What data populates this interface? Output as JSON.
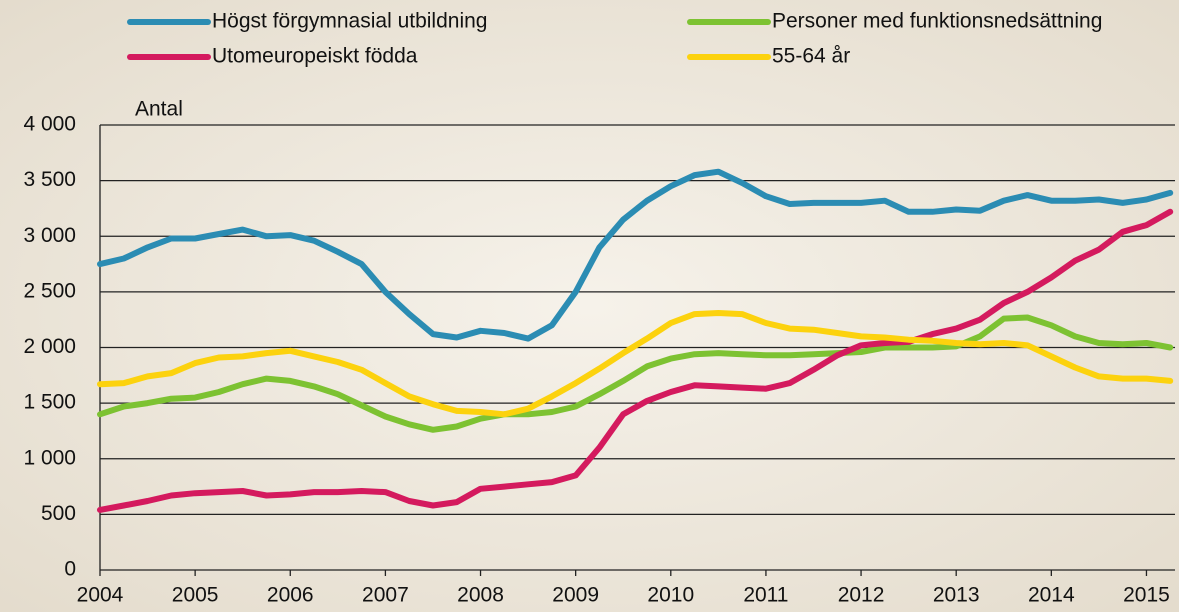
{
  "chart_data": {
    "type": "line",
    "y_label": "Antal",
    "x": [
      2004,
      2004.25,
      2004.5,
      2004.75,
      2005,
      2005.25,
      2005.5,
      2005.75,
      2006,
      2006.25,
      2006.5,
      2006.75,
      2007,
      2007.25,
      2007.5,
      2007.75,
      2008,
      2008.25,
      2008.5,
      2008.75,
      2009,
      2009.25,
      2009.5,
      2009.75,
      2010,
      2010.25,
      2010.5,
      2010.75,
      2011,
      2011.25,
      2011.5,
      2011.75,
      2012,
      2012.25,
      2012.5,
      2012.75,
      2013,
      2013.25,
      2013.5,
      2013.75,
      2014,
      2014.25,
      2014.5,
      2014.75,
      2015,
      2015.25
    ],
    "series": [
      {
        "name": "Högst förgymnasial utbildning",
        "color": "#2b8cb3",
        "values": [
          2750,
          2800,
          2900,
          2980,
          2980,
          3020,
          3060,
          3000,
          3010,
          2960,
          2860,
          2750,
          2500,
          2300,
          2120,
          2090,
          2150,
          2130,
          2080,
          2200,
          2500,
          2900,
          3150,
          3320,
          3450,
          3550,
          3580,
          3480,
          3360,
          3290,
          3300,
          3300,
          3300,
          3320,
          3220,
          3220,
          3240,
          3230,
          3320,
          3370,
          3320,
          3320,
          3330,
          3300,
          3330,
          3390
        ]
      },
      {
        "name": "Personer med funktionsnedsättning",
        "color": "#7dc232",
        "values": [
          1400,
          1470,
          1500,
          1540,
          1550,
          1600,
          1670,
          1720,
          1700,
          1650,
          1580,
          1480,
          1380,
          1310,
          1260,
          1290,
          1360,
          1400,
          1400,
          1420,
          1470,
          1580,
          1700,
          1830,
          1900,
          1940,
          1950,
          1940,
          1930,
          1930,
          1940,
          1950,
          1960,
          2000,
          2000,
          2000,
          2010,
          2100,
          2260,
          2270,
          2200,
          2100,
          2040,
          2030,
          2040,
          2000
        ]
      },
      {
        "name": "Utomeuropeiskt födda",
        "color": "#d41a5e",
        "values": [
          540,
          580,
          620,
          670,
          690,
          700,
          710,
          670,
          680,
          700,
          700,
          710,
          700,
          620,
          580,
          610,
          730,
          750,
          770,
          790,
          850,
          1100,
          1400,
          1520,
          1600,
          1660,
          1650,
          1640,
          1630,
          1680,
          1800,
          1930,
          2020,
          2040,
          2050,
          2120,
          2170,
          2250,
          2400,
          2500,
          2630,
          2780,
          2880,
          3040,
          3100,
          3220
        ]
      },
      {
        "name": "55-64 år",
        "color": "#fcd20e",
        "values": [
          1670,
          1680,
          1740,
          1770,
          1860,
          1910,
          1920,
          1950,
          1970,
          1920,
          1870,
          1800,
          1680,
          1560,
          1490,
          1430,
          1420,
          1400,
          1450,
          1560,
          1680,
          1810,
          1950,
          2080,
          2220,
          2300,
          2310,
          2300,
          2220,
          2170,
          2160,
          2130,
          2100,
          2090,
          2070,
          2060,
          2040,
          2030,
          2040,
          2020,
          1920,
          1820,
          1740,
          1720,
          1720,
          1700
        ]
      }
    ],
    "xlim": [
      2004,
      2015.3
    ],
    "xticks": [
      2004,
      2005,
      2006,
      2007,
      2008,
      2009,
      2010,
      2011,
      2012,
      2013,
      2014,
      2015
    ],
    "ylim": [
      0,
      4000
    ],
    "yticks": [
      0,
      500,
      {
        "value": 1000,
        "label": "1 000"
      },
      {
        "value": 1500,
        "label": "1 500"
      },
      {
        "value": 2000,
        "label": "2 000"
      },
      {
        "value": 2500,
        "label": "2 500"
      },
      {
        "value": 3000,
        "label": "3 000"
      },
      {
        "value": 3500,
        "label": "3 500"
      },
      {
        "value": 4000,
        "label": "4 000"
      }
    ],
    "grid": true
  }
}
